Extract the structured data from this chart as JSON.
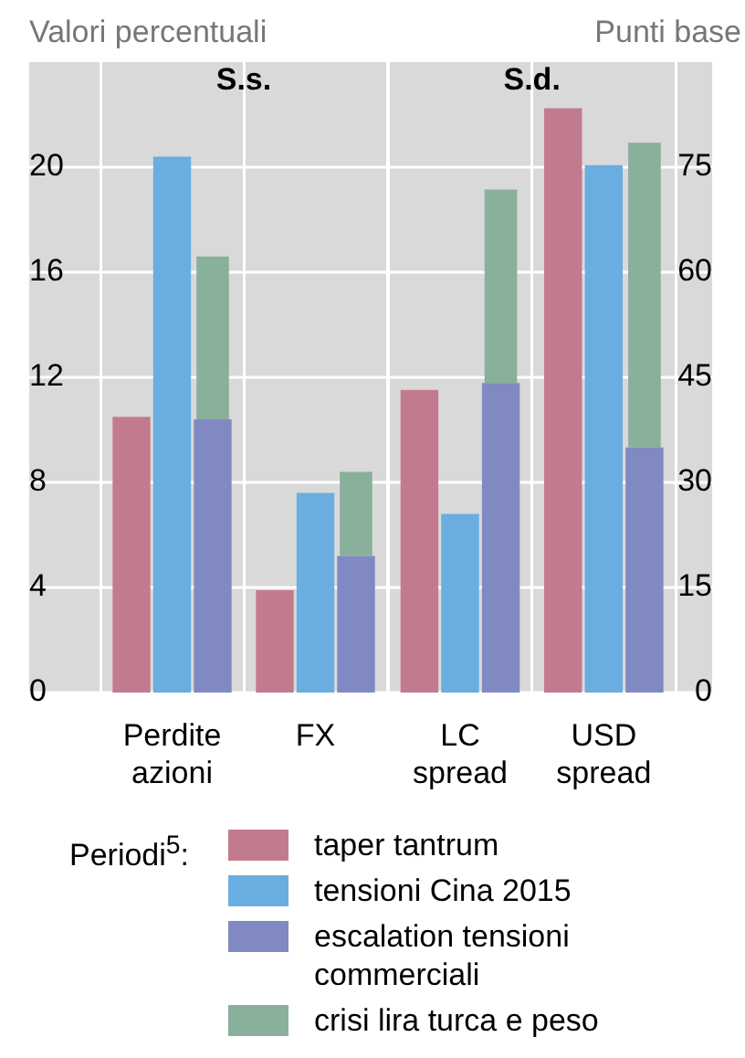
{
  "chart_data": [
    {
      "type": "bar",
      "categories": [
        "Perdite azioni",
        "FX"
      ],
      "ylabel": "Valori percentuali",
      "ylim": [
        0,
        24
      ],
      "yticks": [
        0,
        4,
        8,
        12,
        16,
        20
      ],
      "grid": true,
      "annotations": [
        "S.s."
      ],
      "series": [
        {
          "color": "#c27b8e",
          "values": [
            10.5,
            3.9
          ]
        },
        {
          "color": "#6aade0",
          "values": [
            20.4,
            7.6
          ]
        },
        {
          "color": "#8189c3",
          "values": [
            10.4,
            5.2
          ]
        },
        {
          "color": "#88b09a",
          "values": [
            6.2,
            3.2
          ],
          "base": [
            10.4,
            5.2
          ]
        }
      ]
    },
    {
      "type": "bar",
      "categories": [
        "LC spread",
        "USD spread"
      ],
      "y2label": "Punti base",
      "y2lim": [
        0,
        90
      ],
      "y2ticks": [
        0,
        15,
        30,
        45,
        60,
        75
      ],
      "grid": true,
      "annotations": [
        "S.d."
      ],
      "legend": "bottom",
      "legend_title": "Periodi$^{5}$:",
      "series": [
        {
          "name": "taper tantrum",
          "color": "#c27b8e",
          "values": [
            43.2,
            83.4
          ],
          "axis": "y2"
        },
        {
          "name": "tensioni Cina 2015",
          "color": "#6aade0",
          "values": [
            25.5,
            75.3
          ],
          "axis": "y2"
        },
        {
          "name": "escalation tensioni commerciali",
          "color": "#8189c3",
          "values": [
            44.2,
            35.0
          ],
          "axis": "y2"
        },
        {
          "name": "crisi lira turca e peso",
          "color": "#88b09a",
          "values": [
            27.6,
            43.5
          ],
          "base": [
            44.2,
            35.0
          ],
          "axis": "y2"
        }
      ]
    }
  ]
}
